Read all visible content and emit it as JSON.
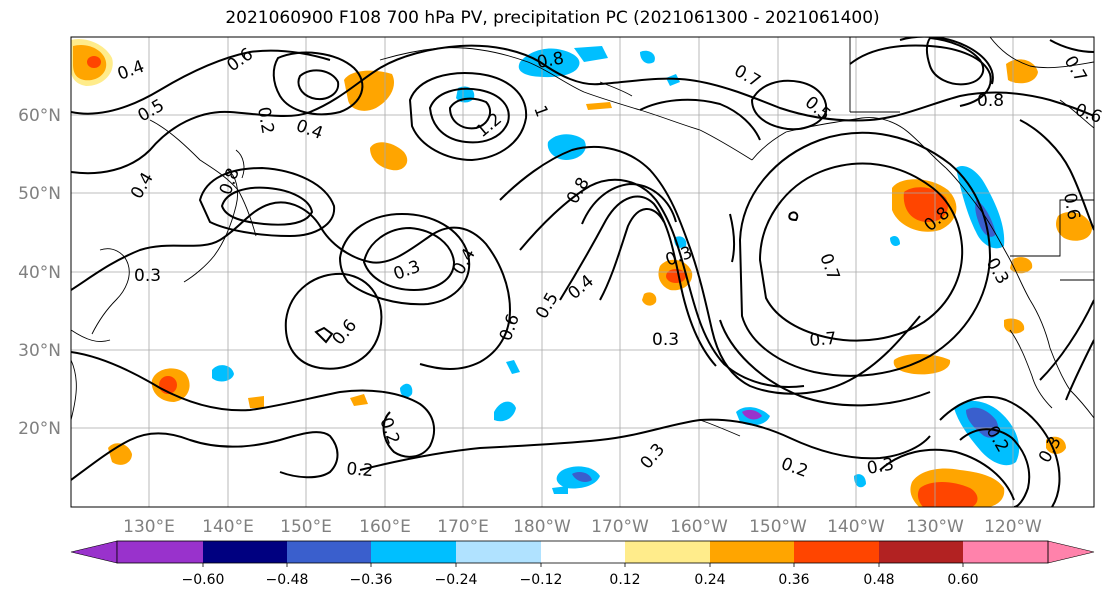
{
  "title": "2021060900 F108 700 hPa PV, precipitation PC (2021061300 - 2021061400)",
  "map": {
    "lat_ticks": [
      "60°N",
      "50°N",
      "40°N",
      "30°N",
      "20°N"
    ],
    "lon_ticks": [
      "130°E",
      "140°E",
      "150°E",
      "160°E",
      "170°E",
      "180°W",
      "170°W",
      "160°W",
      "150°W",
      "140°W",
      "130°W",
      "120°W"
    ],
    "contour_labels": [
      "0.4",
      "0.6",
      "0.5",
      "0.4",
      "0.2",
      "0.8",
      "1.2",
      "1",
      "0.7",
      "0.5",
      "0.6",
      "0.8",
      "0.4",
      "0.8",
      "0.3",
      "0.4",
      "0.3",
      "0.3",
      "0.6",
      "0.5",
      "0.4",
      "0.6",
      "0.8",
      "0.3",
      "0.7",
      "0.3",
      "0.7",
      "0.6",
      "0.8",
      "0.7",
      "0.2",
      "0.2",
      "0.3",
      "0.2",
      "0.3",
      "0.2",
      "0.3"
    ]
  },
  "colorbar": {
    "colors": [
      "#9932cc",
      "#000080",
      "#3a5fcd",
      "#00bfff",
      "#b0e2ff",
      "#ffffff",
      "#ffec8b",
      "#ffa500",
      "#ff4500",
      "#b22222",
      "#ff82ab"
    ],
    "labels": [
      "−0.60",
      "−0.48",
      "−0.36",
      "−0.24",
      "−0.12",
      "0.12",
      "0.24",
      "0.36",
      "0.48",
      "0.60"
    ]
  }
}
